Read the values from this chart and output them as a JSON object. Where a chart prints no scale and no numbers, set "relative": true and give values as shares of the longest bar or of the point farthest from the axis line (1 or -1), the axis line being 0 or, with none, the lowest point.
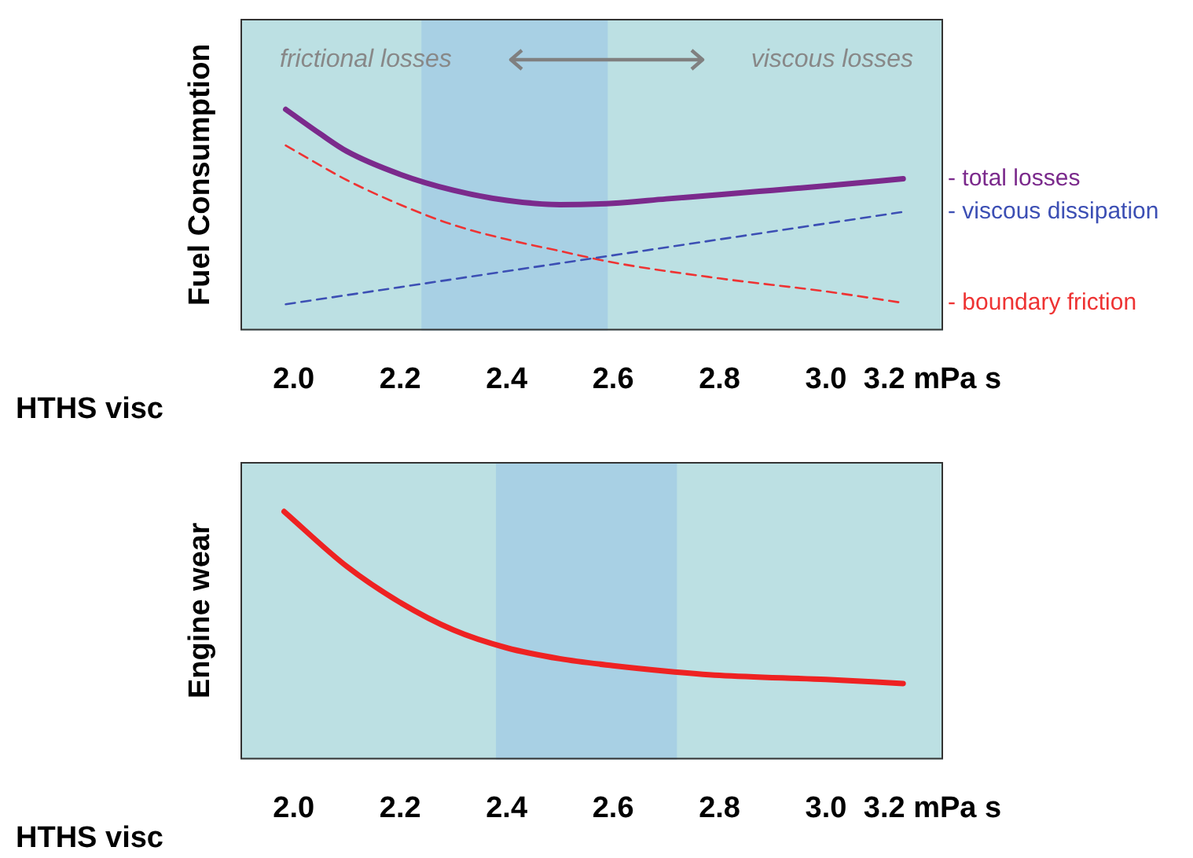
{
  "chart_data": [
    {
      "type": "line",
      "relative": true,
      "ylabel": "Fuel Consumption",
      "xlabel": "HTHS visc",
      "xlim": [
        1.9,
        3.22
      ],
      "xticks": [
        {
          "value": 2.0,
          "label": "2.0"
        },
        2.2,
        2.4,
        2.6,
        2.8,
        {
          "value": 3.0,
          "label": "3.0"
        },
        {
          "value": 3.2,
          "label": "3.2 mPa s"
        }
      ],
      "legend": false,
      "marker": "none",
      "bands": [
        {
          "axis": "x",
          "from": 2.24,
          "to": 2.59,
          "color": "#a8d0e4"
        }
      ],
      "annotations": [
        "frictional losses",
        "viscous losses"
      ],
      "series": [
        {
          "name": "- total losses",
          "color": "#7b2a8c",
          "line_style": "solid",
          "x": [
            1.985,
            2.05,
            2.1,
            2.2,
            2.3,
            2.4,
            2.5,
            2.6,
            2.7,
            2.8,
            2.9,
            3.0,
            3.145
          ],
          "values": [
            1.0,
            0.889,
            0.81,
            0.706,
            0.634,
            0.588,
            0.569,
            0.575,
            0.595,
            0.614,
            0.634,
            0.654,
            0.686
          ]
        },
        {
          "name": "- viscous dissipation",
          "color": "#3c4fb4",
          "line_style": "dashed",
          "x": [
            1.985,
            3.145
          ],
          "values": [
            0.118,
            0.536
          ]
        },
        {
          "name": "- boundary friction",
          "color": "#ee3333",
          "line_style": "dashed",
          "x": [
            1.985,
            2.1,
            2.2,
            2.3,
            2.4,
            2.5,
            2.6,
            2.8,
            3.0,
            3.145
          ],
          "values": [
            0.837,
            0.68,
            0.569,
            0.477,
            0.412,
            0.359,
            0.307,
            0.235,
            0.176,
            0.124
          ]
        }
      ]
    },
    {
      "type": "line",
      "relative": true,
      "ylabel": "Engine wear",
      "xlabel": "HTHS visc",
      "xlim": [
        1.9,
        3.22
      ],
      "xticks": [
        {
          "value": 2.0,
          "label": "2.0"
        },
        2.2,
        2.4,
        2.6,
        2.8,
        {
          "value": 3.0,
          "label": "3.0"
        },
        {
          "value": 3.2,
          "label": "3.2 mPa s"
        }
      ],
      "legend": false,
      "marker": "none",
      "bands": [
        {
          "axis": "x",
          "from": 2.38,
          "to": 2.72,
          "color": "#a8d0e4"
        }
      ],
      "series": [
        {
          "color": "#ee2222",
          "line_style": "solid",
          "x": [
            1.982,
            2.1,
            2.2,
            2.3,
            2.4,
            2.5,
            2.6,
            2.7,
            2.8,
            3.0,
            3.145
          ],
          "values": [
            1.0,
            0.778,
            0.633,
            0.522,
            0.45,
            0.406,
            0.378,
            0.356,
            0.339,
            0.322,
            0.306
          ]
        }
      ]
    }
  ]
}
